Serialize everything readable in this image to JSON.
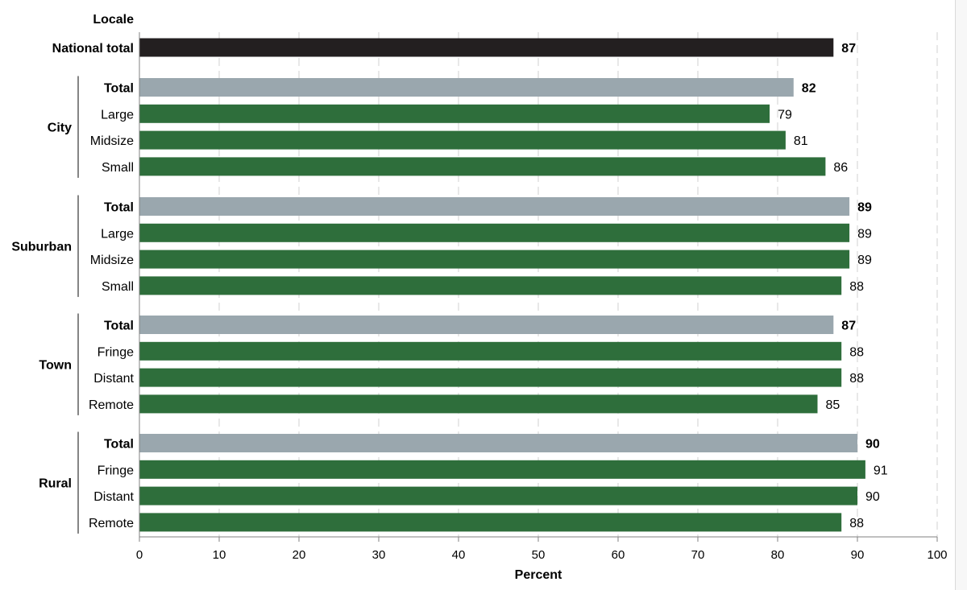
{
  "chart_data": {
    "type": "bar",
    "orientation": "horizontal",
    "xlabel": "Percent",
    "xlim": [
      0,
      100
    ],
    "xticks": [
      0,
      10,
      20,
      30,
      40,
      50,
      60,
      70,
      80,
      90,
      100
    ],
    "category_axis_title": "Locale",
    "grid": "vertical dashed",
    "colors": {
      "national": "#231f20",
      "total": "#9aa7ae",
      "subcategory": "#2e6e3b"
    },
    "national": {
      "label": "National total",
      "value": 87
    },
    "groups": [
      {
        "name": "City",
        "rows": [
          {
            "label": "Total",
            "value": 82,
            "kind": "total"
          },
          {
            "label": "Large",
            "value": 79,
            "kind": "sub"
          },
          {
            "label": "Midsize",
            "value": 81,
            "kind": "sub"
          },
          {
            "label": "Small",
            "value": 86,
            "kind": "sub"
          }
        ]
      },
      {
        "name": "Suburban",
        "rows": [
          {
            "label": "Total",
            "value": 89,
            "kind": "total"
          },
          {
            "label": "Large",
            "value": 89,
            "kind": "sub"
          },
          {
            "label": "Midsize",
            "value": 89,
            "kind": "sub"
          },
          {
            "label": "Small",
            "value": 88,
            "kind": "sub"
          }
        ]
      },
      {
        "name": "Town",
        "rows": [
          {
            "label": "Total",
            "value": 87,
            "kind": "total"
          },
          {
            "label": "Fringe",
            "value": 88,
            "kind": "sub"
          },
          {
            "label": "Distant",
            "value": 88,
            "kind": "sub"
          },
          {
            "label": "Remote",
            "value": 85,
            "kind": "sub"
          }
        ]
      },
      {
        "name": "Rural",
        "rows": [
          {
            "label": "Total",
            "value": 90,
            "kind": "total"
          },
          {
            "label": "Fringe",
            "value": 91,
            "kind": "sub"
          },
          {
            "label": "Distant",
            "value": 90,
            "kind": "sub"
          },
          {
            "label": "Remote",
            "value": 88,
            "kind": "sub"
          }
        ]
      }
    ]
  }
}
